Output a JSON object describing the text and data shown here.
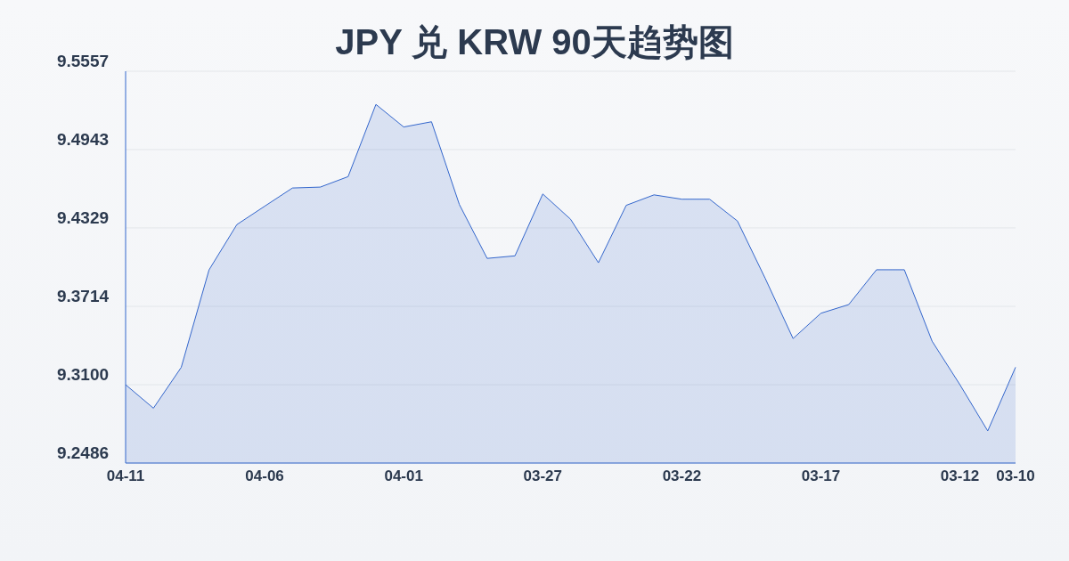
{
  "chart_data": {
    "type": "area",
    "title": "JPY 兑 KRW 90天趋势图",
    "categories": [
      "04-11",
      null,
      null,
      null,
      null,
      "04-06",
      null,
      null,
      null,
      null,
      "04-01",
      null,
      null,
      null,
      null,
      "03-27",
      null,
      null,
      null,
      null,
      "03-22",
      null,
      null,
      null,
      null,
      "03-17",
      null,
      null,
      null,
      null,
      "03-12",
      null,
      "03-10"
    ],
    "series": [
      {
        "color": "#3366cc",
        "values": [
          9.31,
          9.2916,
          9.3236,
          9.4,
          9.4355,
          9.4499,
          9.4642,
          9.4649,
          9.4731,
          9.5297,
          9.512,
          9.5161,
          9.4513,
          9.409,
          9.411,
          9.4595,
          9.4397,
          9.4056,
          9.4506,
          9.4588,
          9.4554,
          9.4554,
          9.4383,
          9.3933,
          9.3462,
          9.366,
          9.3728,
          9.4001,
          9.4001,
          9.3441,
          9.31,
          9.2738,
          9.3237
        ]
      }
    ],
    "ylim": [
      9.2486,
      9.5557
    ],
    "yticks": [
      9.2486,
      {
        "value": 9.31,
        "label": "9.3100"
      },
      9.3714,
      9.4329,
      9.4943,
      9.5557
    ],
    "grid": "y"
  }
}
